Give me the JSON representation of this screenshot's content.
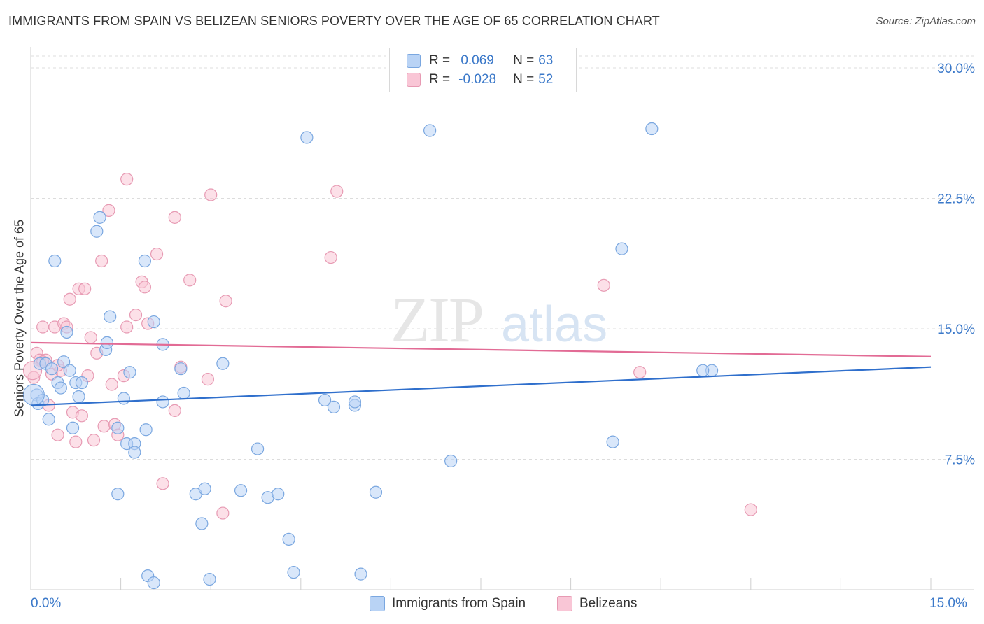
{
  "title": "IMMIGRANTS FROM SPAIN VS BELIZEAN SENIORS POVERTY OVER THE AGE OF 65 CORRELATION CHART",
  "source": "Source: ZipAtlas.com",
  "watermark": {
    "zip": "ZIP",
    "atlas": "atlas"
  },
  "legend": {
    "r_label": "R =",
    "n_label": "N =",
    "series": [
      {
        "r": "0.069",
        "n": "63",
        "fill": "#b9d3f5",
        "stroke": "#7aa7e0"
      },
      {
        "r": "-0.028",
        "n": "52",
        "fill": "#f9c6d6",
        "stroke": "#e79ab3"
      }
    ]
  },
  "bottom_legend": [
    "Immigrants from Spain",
    "Belizeans"
  ],
  "colors": {
    "blue_line": "#2f6fcc",
    "pink_line": "#e26b95",
    "blue_text": "#3a78c9",
    "grid": "#dcdcdc"
  },
  "chart_data": {
    "type": "scatter",
    "ylabel": "Seniors Poverty Over the Age of 65",
    "xlim": [
      0,
      15
    ],
    "ylim": [
      0,
      30
    ],
    "x_tick_labels": [
      "0.0%",
      "15.0%"
    ],
    "y_ticks": [
      7.5,
      15.0,
      22.5,
      30.0
    ],
    "y_tick_labels": [
      "7.5%",
      "15.0%",
      "22.5%",
      "30.0%"
    ],
    "grid": true,
    "series": [
      {
        "name": "Immigrants from Spain",
        "trend": {
          "y_at_x0": 10.6,
          "y_at_x15": 12.8
        },
        "points": [
          [
            0.1,
            11.2
          ],
          [
            0.12,
            10.7
          ],
          [
            0.15,
            13.0
          ],
          [
            0.2,
            10.9
          ],
          [
            0.25,
            13.0
          ],
          [
            0.3,
            9.8
          ],
          [
            0.35,
            12.7
          ],
          [
            0.4,
            18.9
          ],
          [
            0.45,
            11.9
          ],
          [
            0.5,
            11.6
          ],
          [
            0.55,
            13.1
          ],
          [
            0.6,
            14.8
          ],
          [
            0.65,
            12.6
          ],
          [
            0.7,
            9.3
          ],
          [
            0.75,
            11.9
          ],
          [
            0.8,
            11.1
          ],
          [
            0.85,
            11.9
          ],
          [
            1.1,
            20.6
          ],
          [
            1.15,
            21.4
          ],
          [
            1.25,
            13.8
          ],
          [
            1.27,
            14.2
          ],
          [
            1.32,
            15.7
          ],
          [
            1.45,
            9.3
          ],
          [
            1.45,
            5.5
          ],
          [
            1.55,
            11.0
          ],
          [
            1.6,
            8.4
          ],
          [
            1.65,
            12.5
          ],
          [
            1.73,
            8.4
          ],
          [
            1.73,
            7.9
          ],
          [
            1.9,
            18.9
          ],
          [
            1.92,
            9.2
          ],
          [
            1.95,
            0.8
          ],
          [
            2.05,
            15.4
          ],
          [
            2.05,
            0.4
          ],
          [
            2.2,
            14.1
          ],
          [
            2.2,
            10.8
          ],
          [
            2.5,
            12.7
          ],
          [
            2.55,
            11.3
          ],
          [
            2.75,
            5.5
          ],
          [
            2.85,
            3.8
          ],
          [
            2.9,
            5.8
          ],
          [
            2.98,
            0.6
          ],
          [
            3.2,
            13.0
          ],
          [
            3.5,
            5.7
          ],
          [
            3.78,
            8.1
          ],
          [
            3.95,
            5.3
          ],
          [
            4.12,
            5.5
          ],
          [
            4.3,
            2.9
          ],
          [
            4.38,
            1.0
          ],
          [
            4.6,
            26.0
          ],
          [
            4.9,
            10.9
          ],
          [
            5.05,
            10.5
          ],
          [
            5.4,
            10.6
          ],
          [
            5.4,
            10.8
          ],
          [
            5.5,
            0.9
          ],
          [
            5.75,
            5.6
          ],
          [
            6.65,
            26.4
          ],
          [
            7.0,
            7.4
          ],
          [
            9.7,
            8.5
          ],
          [
            9.85,
            19.6
          ],
          [
            10.35,
            26.5
          ],
          [
            11.35,
            12.6
          ],
          [
            11.2,
            12.6
          ]
        ]
      },
      {
        "name": "Belizeans",
        "trend": {
          "y_at_x0": 14.2,
          "y_at_x15": 13.4
        },
        "points": [
          [
            0.05,
            12.2
          ],
          [
            0.1,
            13.6
          ],
          [
            0.15,
            13.2
          ],
          [
            0.2,
            15.1
          ],
          [
            0.25,
            13.2
          ],
          [
            0.3,
            10.6
          ],
          [
            0.35,
            12.4
          ],
          [
            0.4,
            15.1
          ],
          [
            0.45,
            8.9
          ],
          [
            0.5,
            12.6
          ],
          [
            0.55,
            15.3
          ],
          [
            0.6,
            15.1
          ],
          [
            0.65,
            16.7
          ],
          [
            0.7,
            10.2
          ],
          [
            0.75,
            8.5
          ],
          [
            0.8,
            17.3
          ],
          [
            0.85,
            10.0
          ],
          [
            0.9,
            17.3
          ],
          [
            0.95,
            12.3
          ],
          [
            1.0,
            14.5
          ],
          [
            1.05,
            8.6
          ],
          [
            1.1,
            13.6
          ],
          [
            1.18,
            18.9
          ],
          [
            1.22,
            9.4
          ],
          [
            1.3,
            21.8
          ],
          [
            1.35,
            11.8
          ],
          [
            1.4,
            9.5
          ],
          [
            1.45,
            8.9
          ],
          [
            1.55,
            12.3
          ],
          [
            1.6,
            15.1
          ],
          [
            1.6,
            23.6
          ],
          [
            1.75,
            15.8
          ],
          [
            1.85,
            17.7
          ],
          [
            1.9,
            17.4
          ],
          [
            1.95,
            15.3
          ],
          [
            2.1,
            19.3
          ],
          [
            2.2,
            6.1
          ],
          [
            2.4,
            21.4
          ],
          [
            2.4,
            10.3
          ],
          [
            2.5,
            12.8
          ],
          [
            2.65,
            17.8
          ],
          [
            2.95,
            12.1
          ],
          [
            3.0,
            22.7
          ],
          [
            3.2,
            4.4
          ],
          [
            3.25,
            16.6
          ],
          [
            5.0,
            19.1
          ],
          [
            5.1,
            22.9
          ],
          [
            9.55,
            17.5
          ],
          [
            10.15,
            12.5
          ],
          [
            12.0,
            4.6
          ],
          [
            0.2,
            13.1
          ],
          [
            0.45,
            12.9
          ]
        ]
      }
    ]
  }
}
